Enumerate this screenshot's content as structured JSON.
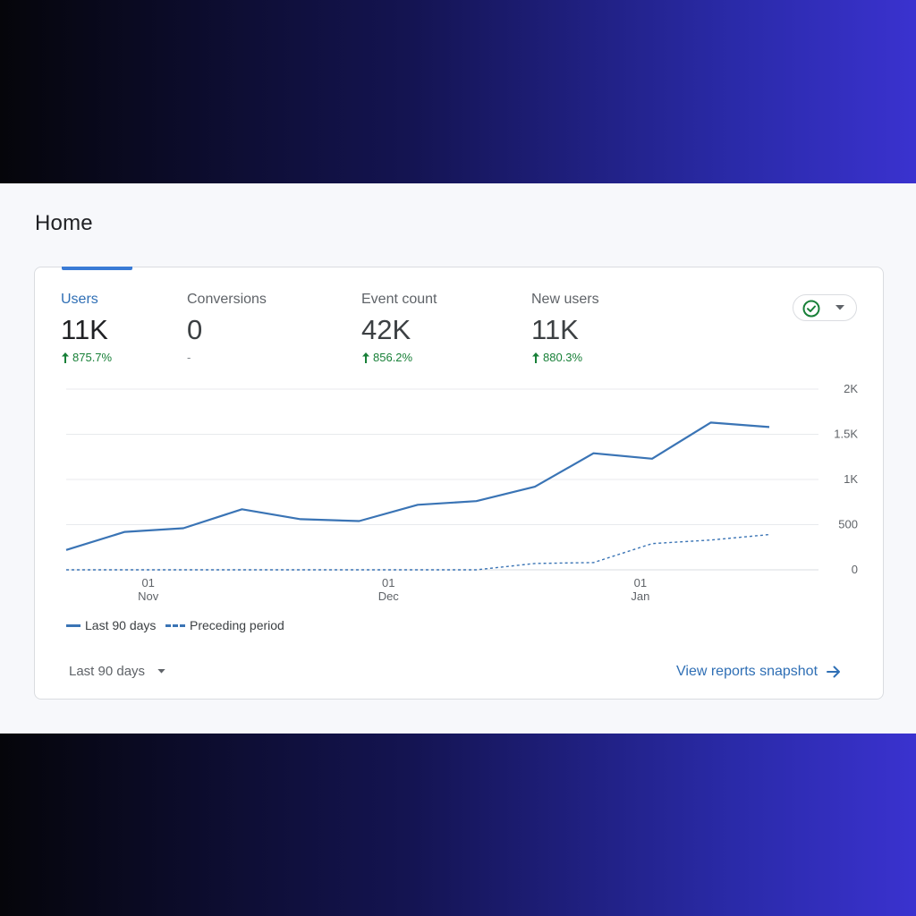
{
  "page": {
    "title": "Home"
  },
  "metrics": [
    {
      "label": "Users",
      "value": "11K",
      "change": "875.7%",
      "trend": "up",
      "active": true
    },
    {
      "label": "Conversions",
      "value": "0",
      "change": "-",
      "trend": "none",
      "active": false
    },
    {
      "label": "Event count",
      "value": "42K",
      "change": "856.2%",
      "trend": "up",
      "active": false
    },
    {
      "label": "New users",
      "value": "11K",
      "change": "880.3%",
      "trend": "up",
      "active": false
    }
  ],
  "status": {
    "icon": "check-circle-icon",
    "dropdown_icon": "caret-down-icon",
    "color": "#188038"
  },
  "chart_data": {
    "type": "line",
    "title": "",
    "xlabel": "",
    "ylabel": "",
    "ylim": [
      0,
      2000
    ],
    "y_ticks": [
      "0",
      "500",
      "1K",
      "1.5K",
      "2K"
    ],
    "x_ticks": [
      {
        "day": "01",
        "month": "Nov"
      },
      {
        "day": "01",
        "month": "Dec"
      },
      {
        "day": "01",
        "month": "Jan"
      }
    ],
    "x": [
      0,
      1,
      2,
      3,
      4,
      5,
      6,
      7,
      8,
      9,
      10,
      11,
      12
    ],
    "x_tick_positions": [
      1.4,
      5.5,
      9.8
    ],
    "grid": true,
    "legend_position": "bottom-left",
    "series": [
      {
        "name": "Last 90 days",
        "style": "solid",
        "color": "#3a74b5",
        "values": [
          220,
          420,
          460,
          670,
          560,
          540,
          720,
          760,
          920,
          1290,
          1230,
          1630,
          1580
        ]
      },
      {
        "name": "Preceding period",
        "style": "dashed",
        "color": "#3a74b5",
        "values": [
          0,
          0,
          0,
          0,
          0,
          0,
          0,
          0,
          70,
          80,
          290,
          330,
          390
        ]
      }
    ]
  },
  "footer": {
    "period_label": "Last 90 days",
    "view_link": "View reports snapshot"
  }
}
